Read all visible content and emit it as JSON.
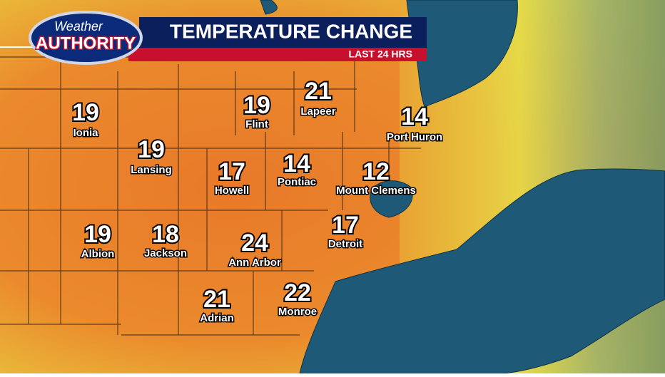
{
  "header": {
    "logo_top": "Weather",
    "logo_bottom": "AUTHORITY",
    "title": "TEMPERATURE CHANGE",
    "subtitle": "LAST 24 HRS"
  },
  "cities": [
    {
      "name": "Ionia",
      "value": "19"
    },
    {
      "name": "Lansing",
      "value": "19"
    },
    {
      "name": "Flint",
      "value": "19"
    },
    {
      "name": "Lapeer",
      "value": "21"
    },
    {
      "name": "Port Huron",
      "value": "14"
    },
    {
      "name": "Howell",
      "value": "17"
    },
    {
      "name": "Pontiac",
      "value": "14"
    },
    {
      "name": "Mount Clemens",
      "value": "12"
    },
    {
      "name": "Albion",
      "value": "19"
    },
    {
      "name": "Jackson",
      "value": "18"
    },
    {
      "name": "Ann Arbor",
      "value": "24"
    },
    {
      "name": "Detroit",
      "value": "17"
    },
    {
      "name": "Adrian",
      "value": "21"
    },
    {
      "name": "Monroe",
      "value": "22"
    }
  ]
}
